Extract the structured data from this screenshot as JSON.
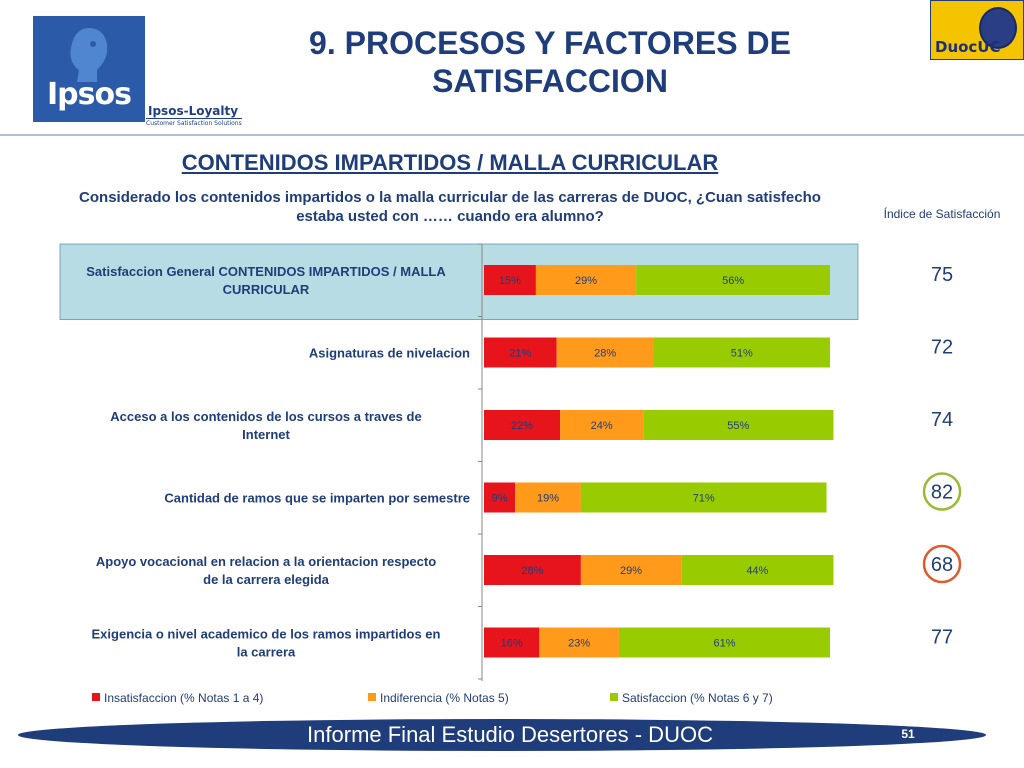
{
  "header": {
    "title": "9. PROCESOS Y FACTORES DE SATISFACCION",
    "logo_text": "Ipsos",
    "logo_subtitle": "Ipsos-Loyalty",
    "logo_tagline": "Customer Satisfaction Solutions",
    "partner_logo_text": "DuocUC"
  },
  "section_title": "CONTENIDOS IMPARTIDOS / MALLA CURRICULAR",
  "question": "Considerado los contenidos impartidos o la malla curricular de las carreras de DUOC, ¿Cuan satisfecho estaba usted con …… cuando era alumno?",
  "index_title": "Índice de Satisfacción",
  "chart_data": {
    "type": "bar",
    "orientation": "horizontal",
    "stacked": true,
    "percent_stacked": true,
    "categories": [
      "Satisfaccion General CONTENIDOS IMPARTIDOS / MALLA CURRICULAR",
      "Asignaturas de nivelacion",
      "Acceso a los contenidos de los cursos a traves de Internet",
      "Cantidad de ramos que se imparten por semestre",
      "Apoyo vocacional en relacion a la orientacion respecto de la carrera elegida",
      "Exigencia o nivel academico de los ramos impartidos en la carrera"
    ],
    "series": [
      {
        "name": "Insatisfaccion (% Notas 1 a 4)",
        "color": "#e8141b",
        "values": [
          15,
          21,
          22,
          9,
          28,
          16
        ]
      },
      {
        "name": "Indiferencia (% Notas 5)",
        "color": "#ff9a1a",
        "values": [
          29,
          28,
          24,
          19,
          29,
          23
        ]
      },
      {
        "name": "Satisfaccion (% Notas 6 y 7)",
        "color": "#99cc00",
        "values": [
          56,
          51,
          55,
          71,
          44,
          61
        ]
      }
    ],
    "satisfaction_index": [
      75,
      72,
      74,
      82,
      68,
      77
    ],
    "highlight_index": {
      "3": "#99bb33",
      "4": "#e05a2b"
    },
    "highlighted_category": 0,
    "highlight_color": "#b8dce3",
    "legend_position": "bottom",
    "xlim": [
      0,
      100
    ],
    "grid": false
  },
  "footer": {
    "text": "Informe Final Estudio Desertores - DUOC",
    "page_number": "51"
  },
  "colors": {
    "title": "#1f3d7a",
    "footer_bar": "#1f3d7a",
    "logo_blue": "#2b5ba8",
    "partner_yellow": "#f4c400"
  }
}
